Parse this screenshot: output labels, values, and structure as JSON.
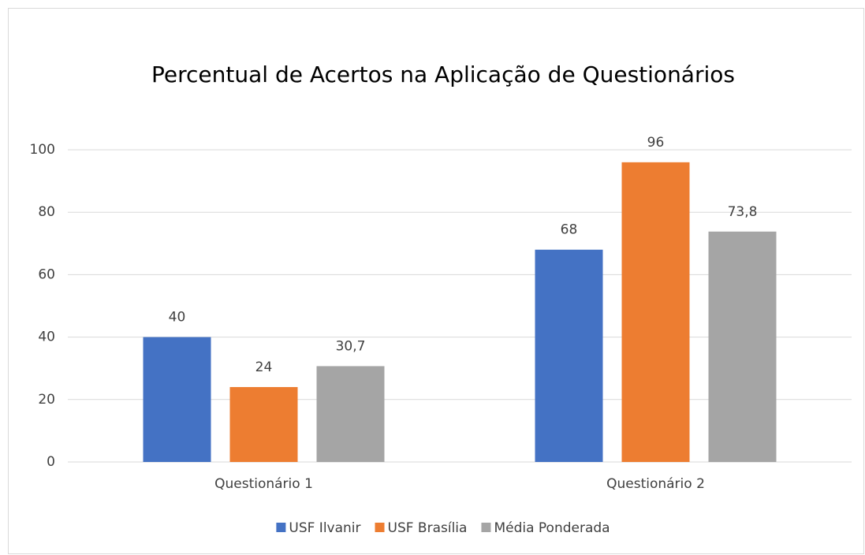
{
  "chart_data": {
    "type": "bar",
    "title": "Percentual de Acertos na Aplicação de Questionários",
    "categories": [
      "Questionário 1",
      "Questionário 2"
    ],
    "series": [
      {
        "name": "USF Ilvanir",
        "color": "#4472c4",
        "values": [
          40,
          68
        ]
      },
      {
        "name": "USF Brasília",
        "color": "#ed7d31",
        "values": [
          24,
          96
        ]
      },
      {
        "name": "Média Ponderada",
        "color": "#a5a5a5",
        "values": [
          30.7,
          73.8
        ],
        "value_labels": [
          "30,7",
          "73,8"
        ]
      }
    ],
    "ylim": [
      0,
      100
    ],
    "yticks": [
      0,
      20,
      40,
      60,
      80,
      100
    ],
    "grid": true,
    "legend": "bottom"
  }
}
